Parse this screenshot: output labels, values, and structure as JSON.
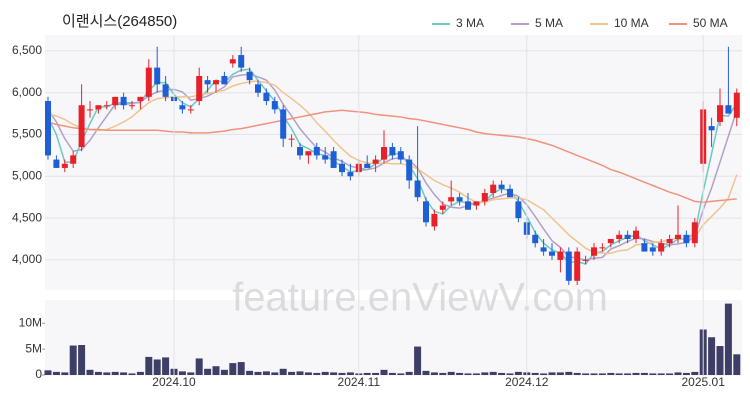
{
  "watermark": "feature.enViewV.com",
  "chart_data": [
    {
      "type": "candlestick",
      "title": "이랜시스(264850)",
      "open": [
        5900,
        5200,
        5100,
        5150,
        5350,
        5800,
        5800,
        5850,
        5850,
        5950,
        5850,
        5900,
        5950,
        6300,
        6100,
        5950,
        5850,
        5800,
        5900,
        6150,
        6100,
        6200,
        6350,
        6450,
        6250,
        6100,
        6000,
        5900,
        5800,
        5450,
        5350,
        5250,
        5350,
        5250,
        5300,
        5150,
        5050,
        5050,
        5150,
        5150,
        5200,
        5350,
        5300,
        5200,
        4950,
        4700,
        4400,
        4600,
        4700,
        4750,
        4700,
        4650,
        4700,
        4800,
        4900,
        4850,
        4700,
        4450,
        4300,
        4150,
        4100,
        4000,
        4100,
        3750,
        4000,
        4050,
        4150,
        4200,
        4250,
        4300,
        4250,
        4200,
        4150,
        4100,
        4200,
        4250,
        4300,
        4200,
        5150,
        5600,
        5650,
        5850,
        5700
      ],
      "high": [
        5950,
        5250,
        5200,
        5300,
        6100,
        5900,
        5850,
        5900,
        5950,
        6000,
        5900,
        5950,
        6400,
        6550,
        6200,
        6000,
        5900,
        5850,
        6300,
        6200,
        6150,
        6250,
        6450,
        6550,
        6300,
        6150,
        6050,
        5950,
        5850,
        5500,
        5400,
        5300,
        5400,
        5350,
        5350,
        5200,
        5150,
        5200,
        5250,
        5250,
        5550,
        5400,
        5350,
        5250,
        5600,
        4750,
        4600,
        4700,
        4950,
        4800,
        4800,
        4700,
        4850,
        4950,
        4950,
        4900,
        4750,
        4500,
        4350,
        4250,
        4200,
        4150,
        4150,
        4150,
        4050,
        4200,
        4200,
        4250,
        4350,
        4350,
        4400,
        4250,
        4200,
        4250,
        4300,
        4650,
        4350,
        4500,
        5900,
        5700,
        6050,
        6550,
        6050
      ],
      "low": [
        5200,
        5100,
        5050,
        5100,
        5300,
        5700,
        5750,
        5800,
        5800,
        5800,
        5800,
        5800,
        5900,
        6000,
        5900,
        5850,
        5750,
        5750,
        5850,
        6000,
        6000,
        6100,
        6300,
        6250,
        6100,
        5950,
        5850,
        5750,
        5350,
        5350,
        5200,
        5150,
        5200,
        5150,
        5100,
        5000,
        4950,
        5000,
        5100,
        5050,
        5150,
        5200,
        5150,
        4850,
        4700,
        4400,
        4350,
        4550,
        4650,
        4650,
        4600,
        4600,
        4650,
        4750,
        4800,
        4750,
        4450,
        4250,
        4150,
        4050,
        4000,
        3850,
        3700,
        3700,
        3950,
        4000,
        4100,
        4150,
        4200,
        4200,
        4200,
        4100,
        4050,
        4050,
        4150,
        4200,
        4150,
        4150,
        5050,
        5350,
        5600,
        5750,
        5600
      ],
      "close": [
        5250,
        5100,
        5150,
        5250,
        5850,
        5800,
        5850,
        5850,
        5950,
        5850,
        5850,
        5950,
        6300,
        6100,
        5950,
        5900,
        5800,
        5800,
        6200,
        6100,
        6150,
        6100,
        6400,
        6300,
        6150,
        6000,
        5900,
        5800,
        5450,
        5450,
        5250,
        5300,
        5250,
        5200,
        5100,
        5050,
        5000,
        5150,
        5100,
        5200,
        5350,
        5250,
        5200,
        4950,
        4750,
        4450,
        4550,
        4650,
        4750,
        4700,
        4600,
        4700,
        4800,
        4900,
        4850,
        4750,
        4500,
        4300,
        4200,
        4100,
        4050,
        4100,
        3750,
        4100,
        4000,
        4150,
        4150,
        4250,
        4300,
        4250,
        4350,
        4100,
        4100,
        4200,
        4250,
        4300,
        4200,
        4450,
        5800,
        5550,
        5850,
        5750,
        6000
      ],
      "up_color": "#e8202a",
      "down_color": "#1e5fd6",
      "series": [
        {
          "name": "3 MA",
          "color": "#6cc9c5",
          "values": [
            5700,
            5500,
            5170,
            5170,
            5420,
            5630,
            5830,
            5830,
            5880,
            5880,
            5880,
            5880,
            6030,
            6120,
            6120,
            5980,
            5880,
            5830,
            5930,
            6030,
            6150,
            6120,
            6220,
            6270,
            6280,
            6150,
            6020,
            5900,
            5720,
            5570,
            5380,
            5330,
            5270,
            5250,
            5180,
            5120,
            5050,
            5070,
            5080,
            5150,
            5220,
            5270,
            5270,
            5130,
            4970,
            4720,
            4580,
            4550,
            4650,
            4700,
            4680,
            4670,
            4700,
            4800,
            4850,
            4830,
            4700,
            4520,
            4330,
            4200,
            4120,
            4080,
            3970,
            3980,
            3950,
            4080,
            4100,
            4180,
            4230,
            4270,
            4300,
            4230,
            4180,
            4130,
            4180,
            4250,
            4250,
            4320,
            4820,
            5270,
            5730,
            5720,
            5870
          ]
        },
        {
          "name": "5 MA",
          "color": "#b49fc9",
          "values": [
            5800,
            5650,
            5450,
            5300,
            5320,
            5430,
            5580,
            5720,
            5860,
            5860,
            5870,
            5890,
            5960,
            6010,
            6030,
            6040,
            6010,
            5910,
            5930,
            5960,
            6010,
            6070,
            6190,
            6210,
            6220,
            6190,
            6150,
            6030,
            5860,
            5720,
            5570,
            5450,
            5340,
            5290,
            5220,
            5180,
            5120,
            5100,
            5080,
            5100,
            5160,
            5210,
            5220,
            5190,
            5100,
            4920,
            4780,
            4670,
            4630,
            4620,
            4650,
            4680,
            4710,
            4740,
            4770,
            4800,
            4760,
            4660,
            4520,
            4370,
            4230,
            4150,
            4040,
            4020,
            4000,
            4020,
            4030,
            4130,
            4170,
            4220,
            4260,
            4250,
            4220,
            4200,
            4180,
            4190,
            4210,
            4280,
            4600,
            4860,
            5170,
            5480,
            5790
          ]
        },
        {
          "name": "10 MA",
          "color": "#f1c48d",
          "values": [
            5750,
            5720,
            5680,
            5620,
            5580,
            5560,
            5550,
            5560,
            5600,
            5650,
            5710,
            5800,
            5880,
            5930,
            5940,
            5950,
            5950,
            5950,
            5970,
            5990,
            6010,
            6030,
            6080,
            6110,
            6130,
            6140,
            6120,
            6090,
            6000,
            5930,
            5850,
            5760,
            5640,
            5540,
            5430,
            5330,
            5240,
            5190,
            5160,
            5150,
            5160,
            5150,
            5150,
            5130,
            5090,
            5020,
            4950,
            4900,
            4860,
            4810,
            4740,
            4690,
            4690,
            4720,
            4730,
            4740,
            4740,
            4720,
            4660,
            4600,
            4500,
            4400,
            4300,
            4220,
            4140,
            4090,
            4080,
            4080,
            4110,
            4120,
            4180,
            4190,
            4210,
            4220,
            4240,
            4260,
            4250,
            4270,
            4420,
            4520,
            4620,
            4740,
            5020
          ]
        },
        {
          "name": "50 MA",
          "color": "#f0937c",
          "values": [
            5650,
            5620,
            5600,
            5580,
            5570,
            5560,
            5560,
            5550,
            5550,
            5550,
            5550,
            5550,
            5550,
            5550,
            5540,
            5530,
            5530,
            5520,
            5520,
            5520,
            5530,
            5540,
            5560,
            5570,
            5590,
            5610,
            5630,
            5650,
            5670,
            5690,
            5710,
            5730,
            5750,
            5770,
            5780,
            5790,
            5780,
            5770,
            5760,
            5740,
            5730,
            5720,
            5710,
            5690,
            5680,
            5660,
            5640,
            5620,
            5600,
            5580,
            5560,
            5530,
            5510,
            5500,
            5490,
            5480,
            5470,
            5450,
            5430,
            5400,
            5370,
            5330,
            5290,
            5250,
            5210,
            5170,
            5130,
            5080,
            5050,
            5010,
            4970,
            4930,
            4890,
            4850,
            4810,
            4780,
            4740,
            4700,
            4690,
            4700,
            4710,
            4720,
            4730
          ]
        }
      ],
      "ylim": [
        3640,
        6690
      ],
      "yticks": [
        {
          "value": 4000,
          "label": "4,000"
        },
        {
          "value": 4500,
          "label": "4,500"
        },
        {
          "value": 5000,
          "label": "5,000"
        },
        {
          "value": 5500,
          "label": "5,500"
        },
        {
          "value": 6000,
          "label": "6,000"
        },
        {
          "value": 6500,
          "label": "6,500"
        }
      ],
      "grid": true
    },
    {
      "type": "bar",
      "color": "#3d3f66",
      "categories": [
        null,
        null,
        null,
        null,
        null,
        null,
        null,
        null,
        null,
        null,
        null,
        null,
        null,
        null,
        null,
        "2024.10",
        null,
        null,
        null,
        null,
        null,
        null,
        null,
        null,
        null,
        null,
        null,
        null,
        null,
        null,
        null,
        null,
        null,
        null,
        null,
        null,
        null,
        "2024.11",
        null,
        null,
        null,
        null,
        null,
        null,
        null,
        null,
        null,
        null,
        null,
        null,
        null,
        null,
        null,
        null,
        null,
        null,
        null,
        "2024.12",
        null,
        null,
        null,
        null,
        null,
        null,
        null,
        null,
        null,
        null,
        null,
        null,
        null,
        null,
        null,
        null,
        null,
        null,
        null,
        null,
        "2025.01",
        null,
        null,
        null,
        null
      ],
      "values": [
        900000,
        600000,
        500000,
        5700000,
        5800000,
        1000000,
        600000,
        500000,
        600000,
        500000,
        300000,
        600000,
        3500000,
        3000000,
        3400000,
        1200000,
        700000,
        500000,
        3200000,
        1200000,
        1700000,
        1000000,
        2300000,
        2500000,
        800000,
        600000,
        700000,
        500000,
        1200000,
        600000,
        700000,
        500000,
        400000,
        600000,
        500000,
        400000,
        500000,
        300000,
        400000,
        400000,
        1000000,
        400000,
        300000,
        600000,
        5500000,
        800000,
        500000,
        400000,
        600000,
        400000,
        300000,
        300000,
        500000,
        600000,
        400000,
        300000,
        600000,
        500000,
        400000,
        300000,
        500000,
        500000,
        600000,
        400000,
        300000,
        300000,
        300000,
        400000,
        300000,
        300000,
        400000,
        400000,
        300000,
        300000,
        300000,
        500000,
        400000,
        600000,
        8800000,
        7300000,
        5600000,
        13800000,
        4000000
      ],
      "ylim": [
        0,
        14500000
      ],
      "yticks": [
        0,
        {
          "value": 5000000,
          "label": "5M"
        },
        {
          "value": 10000000,
          "label": "10M"
        }
      ]
    }
  ]
}
